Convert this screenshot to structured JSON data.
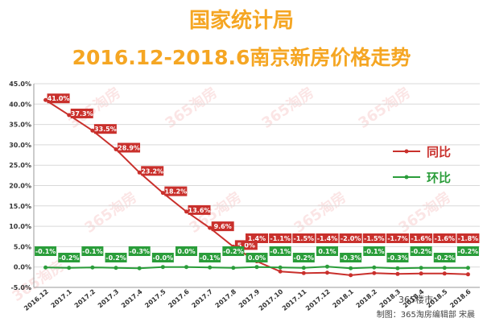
{
  "title_line1": "国家统计局",
  "title_line2": "2016.12-2018.6南京新房价格走势",
  "colors": {
    "title": "#f5a623",
    "yoy": "#c9302c",
    "mom": "#2a9d3a",
    "grid": "#d9d9d9"
  },
  "credit": "制图：365淘房编辑部 宋晨",
  "logo_text": "365楼市",
  "watermark": "365淘房",
  "chart_data": {
    "type": "line",
    "categories": [
      "2016.12",
      "2017.1",
      "2017.2",
      "2017.3",
      "2017.4",
      "2017.5",
      "2017.6",
      "2017.7",
      "2017.8",
      "2017.9",
      "2017.10",
      "2017.11",
      "2017.12",
      "2018.1",
      "2018.2",
      "2018.3",
      "2018.4",
      "2018.5",
      "2018.6"
    ],
    "series": [
      {
        "name": "同比",
        "values": [
          41.0,
          37.3,
          33.5,
          28.9,
          23.2,
          18.2,
          13.6,
          9.6,
          5.0,
          1.4,
          -1.1,
          -1.5,
          -1.4,
          -2.0,
          -1.5,
          -1.7,
          -1.6,
          -1.6,
          -1.8
        ],
        "labels": [
          "41.0%",
          "37.3%",
          "33.5%",
          "28.9%",
          "23.2%",
          "18.2%",
          "13.6%",
          "9.6%",
          "5.0%",
          "1.4%",
          "-1.1%",
          "-1.5%",
          "-1.4%",
          "-2.0%",
          "-1.5%",
          "-1.7%",
          "-1.6%",
          "-1.6%",
          "-1.8%"
        ]
      },
      {
        "name": "环比",
        "values": [
          -0.1,
          -0.2,
          -0.1,
          -0.2,
          -0.3,
          -0.0,
          0.0,
          -0.1,
          -0.2,
          0.0,
          -0.1,
          -0.2,
          0.1,
          -0.3,
          -0.1,
          -0.3,
          -0.2,
          -0.2,
          -0.2
        ],
        "labels": [
          "-0.1%",
          "-0.2%",
          "-0.1%",
          "-0.2%",
          "-0.3%",
          "-0.0%",
          "0.0%",
          "-0.1%",
          "-0.2%",
          "0.0%",
          "-0.1%",
          "-0.2%",
          "0.1%",
          "-0.3%",
          "-0.1%",
          "-0.3%",
          "-0.2%",
          "-0.2%",
          "-0.2%"
        ]
      }
    ],
    "yticks": [
      "-5.0%",
      "0.0%",
      "5.0%",
      "10.0%",
      "15.0%",
      "20.0%",
      "25.0%",
      "30.0%",
      "35.0%",
      "40.0%",
      "45.0%"
    ],
    "ylim": [
      -5,
      45
    ],
    "grid": true,
    "legend_position": "right"
  }
}
